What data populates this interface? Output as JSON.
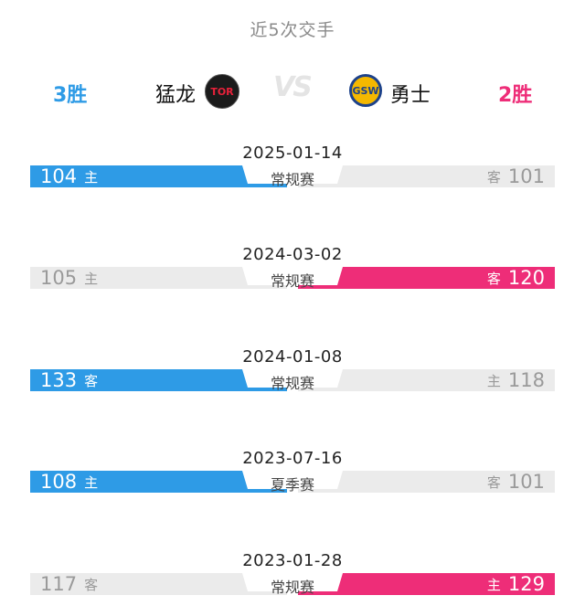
{
  "header": {
    "title": "近5次交手"
  },
  "teams": {
    "left": {
      "wins": "3胜",
      "name": "猛龙",
      "logo_text": "TOR",
      "logo_icon": "raptors-logo-icon"
    },
    "right": {
      "wins": "2胜",
      "name": "勇士",
      "logo_text": "GSW",
      "logo_icon": "warriors-logo-icon"
    },
    "vs": "VS"
  },
  "colors": {
    "left_win": "#2e9be6",
    "right_win": "#ee2d78",
    "lose": "#ebebeb"
  },
  "games": [
    {
      "date": "2025-01-14",
      "type": "常规赛",
      "left_score": "104",
      "left_ha": "主",
      "right_score": "101",
      "right_ha": "客",
      "winner": "left"
    },
    {
      "date": "2024-03-02",
      "type": "常规赛",
      "left_score": "105",
      "left_ha": "主",
      "right_score": "120",
      "right_ha": "客",
      "winner": "right"
    },
    {
      "date": "2024-01-08",
      "type": "常规赛",
      "left_score": "133",
      "left_ha": "客",
      "right_score": "118",
      "right_ha": "主",
      "winner": "left"
    },
    {
      "date": "2023-07-16",
      "type": "夏季赛",
      "left_score": "108",
      "left_ha": "主",
      "right_score": "101",
      "right_ha": "客",
      "winner": "left"
    },
    {
      "date": "2023-01-28",
      "type": "常规赛",
      "left_score": "117",
      "left_ha": "客",
      "right_score": "129",
      "right_ha": "主",
      "winner": "right"
    }
  ]
}
